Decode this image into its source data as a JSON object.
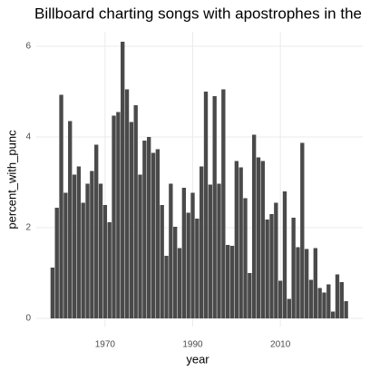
{
  "chart_data": {
    "type": "bar",
    "title": "Billboard charting songs with apostrophes in the",
    "x_label": "year",
    "y_label": "percent_with_punc",
    "x": [
      1958,
      1959,
      1960,
      1961,
      1962,
      1963,
      1964,
      1965,
      1966,
      1967,
      1968,
      1969,
      1970,
      1971,
      1972,
      1973,
      1974,
      1975,
      1976,
      1977,
      1978,
      1979,
      1980,
      1981,
      1982,
      1983,
      1984,
      1985,
      1986,
      1987,
      1988,
      1989,
      1990,
      1991,
      1992,
      1993,
      1994,
      1995,
      1996,
      1997,
      1998,
      1999,
      2000,
      2001,
      2002,
      2003,
      2004,
      2005,
      2006,
      2007,
      2008,
      2009,
      2010,
      2011,
      2012,
      2013,
      2014,
      2015,
      2016,
      2017,
      2018,
      2019,
      2020,
      2021,
      2022,
      2023,
      2024,
      2025
    ],
    "values": [
      1.12,
      2.44,
      4.93,
      2.77,
      4.35,
      3.17,
      3.35,
      2.55,
      2.97,
      3.25,
      3.83,
      2.97,
      2.5,
      2.12,
      4.47,
      4.55,
      6.1,
      5.05,
      4.33,
      4.7,
      3.17,
      3.92,
      4.0,
      3.65,
      3.73,
      2.5,
      1.38,
      2.97,
      2.02,
      1.55,
      2.88,
      2.33,
      2.77,
      2.2,
      3.35,
      5.0,
      2.95,
      4.9,
      2.97,
      5.05,
      1.62,
      1.6,
      3.47,
      3.33,
      2.65,
      1.0,
      4.05,
      3.55,
      3.47,
      2.18,
      2.3,
      2.55,
      0.83,
      2.8,
      0.43,
      2.22,
      1.57,
      3.87,
      1.53,
      0.85,
      1.55,
      0.67,
      0.57,
      0.75,
      0.15,
      0.97,
      0.8,
      0.38
    ],
    "color": "#4a4a4a",
    "xlim": [
      1954.3,
      2028.8
    ],
    "xticks": [
      1970,
      1990,
      2010
    ],
    "ylim": [
      -0.18,
      6.32
    ],
    "yticks": [
      0,
      2,
      4,
      6
    ],
    "grid": true
  }
}
